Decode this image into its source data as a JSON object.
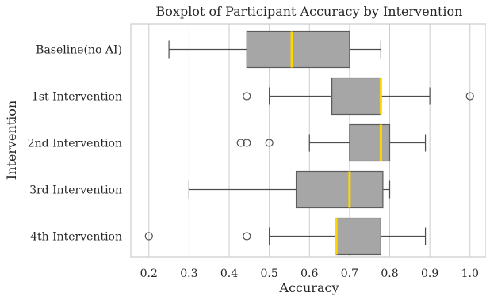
{
  "chart_data": {
    "type": "boxplot",
    "orientation": "horizontal",
    "title": "Boxplot of Participant Accuracy by Intervention",
    "xlabel": "Accuracy",
    "ylabel": "Intervention",
    "xlim": [
      0.155,
      1.04
    ],
    "xticks": [
      0.2,
      0.3,
      0.4,
      0.5,
      0.6,
      0.7,
      0.8,
      0.9,
      1.0
    ],
    "xtick_labels": [
      "0.2",
      "0.3",
      "0.4",
      "0.5",
      "0.6",
      "0.7",
      "0.8",
      "0.9",
      "1.0"
    ],
    "grid": "vertical",
    "colors": {
      "box_fill": "#a6a6a6",
      "median": "#ffd700",
      "whisker": "#4d4d4d",
      "grid": "#cccccc"
    },
    "categories": [
      "Baseline(no AI)",
      "1st Intervention",
      "2nd Intervention",
      "3rd Intervention",
      "4th Intervention"
    ],
    "boxes": [
      {
        "category": "Baseline(no AI)",
        "whisker_low": 0.25,
        "q1": 0.444,
        "median": 0.556,
        "q3": 0.7,
        "whisker_high": 0.778,
        "fliers": []
      },
      {
        "category": "1st Intervention",
        "whisker_low": 0.5,
        "q1": 0.656,
        "median": 0.778,
        "q3": 0.778,
        "whisker_high": 0.9,
        "fliers": [
          0.444,
          1.0
        ]
      },
      {
        "category": "2nd Intervention",
        "whisker_low": 0.6,
        "q1": 0.7,
        "median": 0.778,
        "q3": 0.8,
        "whisker_high": 0.889,
        "fliers": [
          0.429,
          0.444,
          0.5
        ]
      },
      {
        "category": "3rd Intervention",
        "whisker_low": 0.3,
        "q1": 0.567,
        "median": 0.7,
        "q3": 0.783,
        "whisker_high": 0.8,
        "fliers": []
      },
      {
        "category": "4th Intervention",
        "whisker_low": 0.5,
        "q1": 0.667,
        "median": 0.667,
        "q3": 0.778,
        "whisker_high": 0.889,
        "fliers": [
          0.2,
          0.444
        ]
      }
    ]
  }
}
